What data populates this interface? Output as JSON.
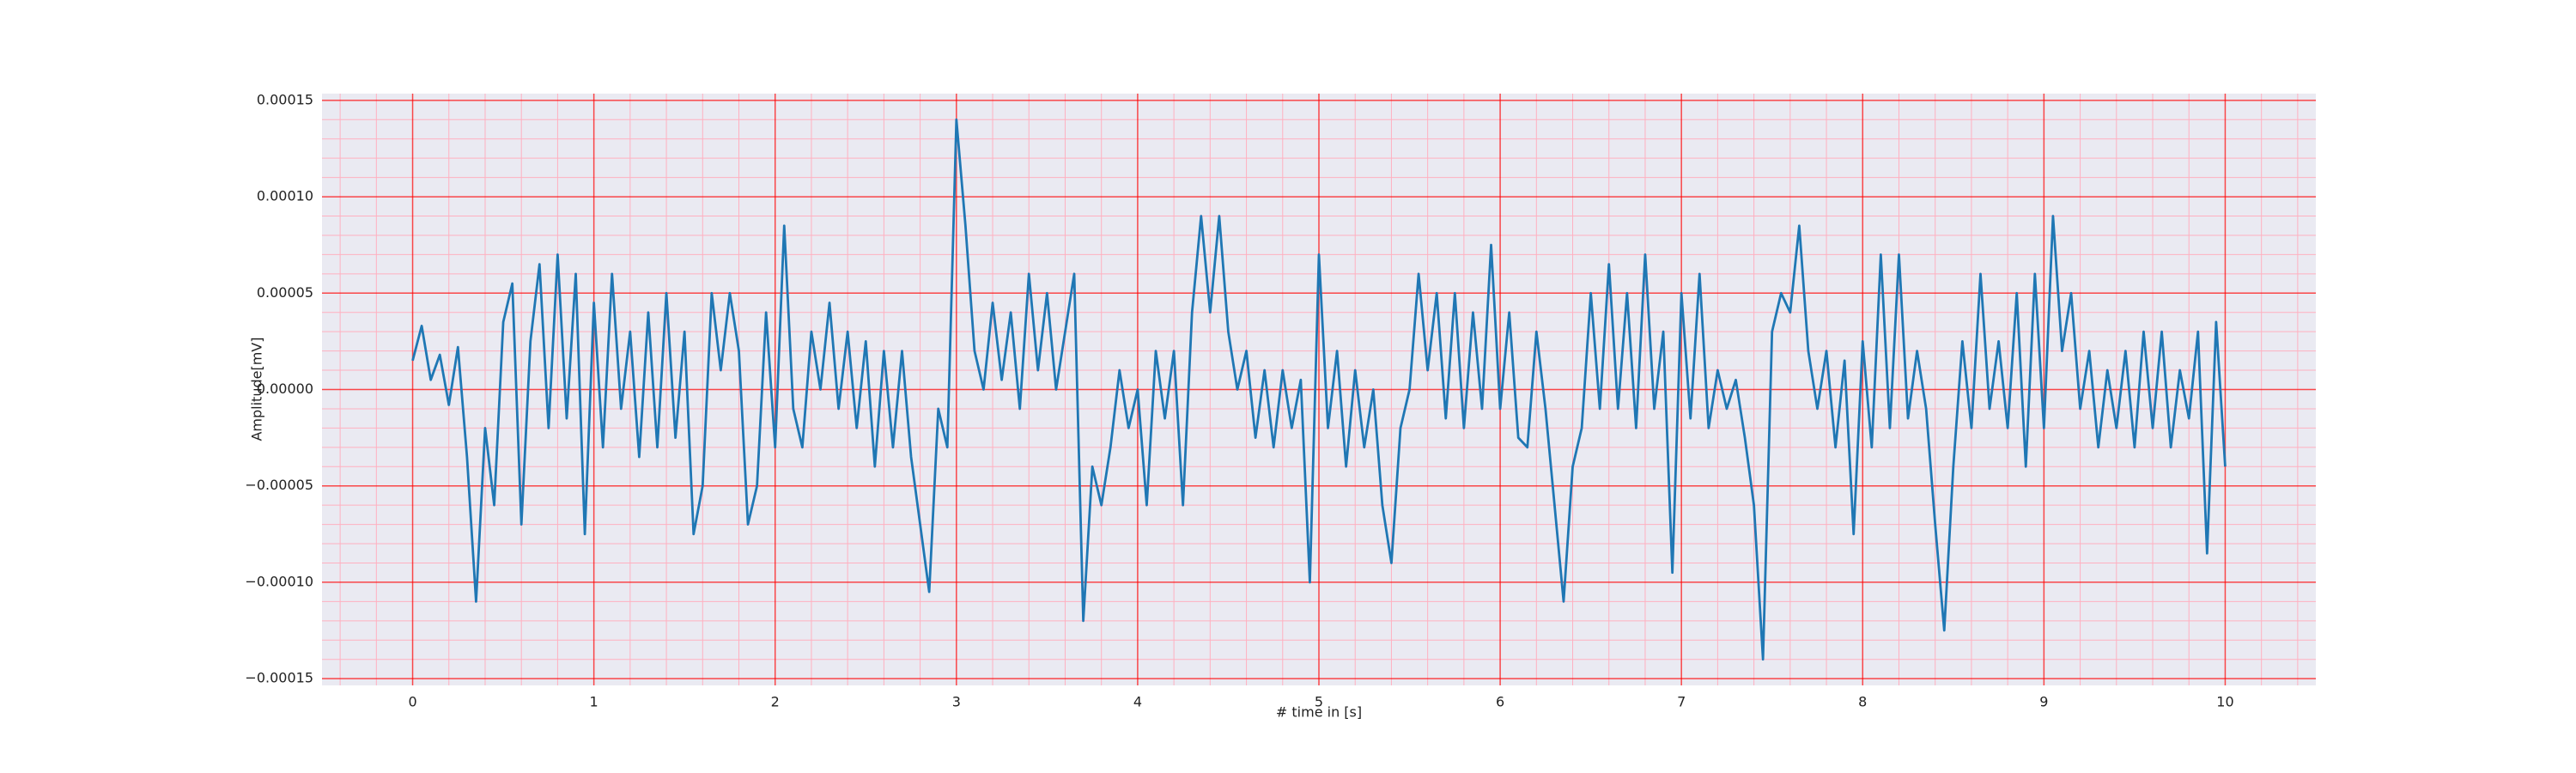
{
  "chart_data": {
    "type": "line",
    "xlabel": "# time in [s]",
    "ylabel": "Amplitude[mV]",
    "x": [
      0,
      0.05,
      0.1,
      0.15,
      0.2,
      0.25,
      0.3,
      0.35,
      0.4,
      0.45,
      0.5,
      0.55,
      0.6,
      0.65,
      0.7,
      0.75,
      0.8,
      0.85,
      0.9,
      0.95,
      1,
      1.05,
      1.1,
      1.15,
      1.2,
      1.25,
      1.3,
      1.35,
      1.4,
      1.45,
      1.5,
      1.55,
      1.6,
      1.65,
      1.7,
      1.75,
      1.8,
      1.85,
      1.9,
      1.95,
      2,
      2.05,
      2.1,
      2.15,
      2.2,
      2.25,
      2.3,
      2.35,
      2.4,
      2.45,
      2.5,
      2.55,
      2.6,
      2.65,
      2.7,
      2.75,
      2.8,
      2.85,
      2.9,
      2.95,
      3,
      3.05,
      3.1,
      3.15,
      3.2,
      3.25,
      3.3,
      3.35,
      3.4,
      3.45,
      3.5,
      3.55,
      3.6,
      3.65,
      3.7,
      3.75,
      3.8,
      3.85,
      3.9,
      3.95,
      4,
      4.05,
      4.1,
      4.15,
      4.2,
      4.25,
      4.3,
      4.35,
      4.4,
      4.45,
      4.5,
      4.55,
      4.6,
      4.65,
      4.7,
      4.75,
      4.8,
      4.85,
      4.9,
      4.95,
      5,
      5.05,
      5.1,
      5.15,
      5.2,
      5.25,
      5.3,
      5.35,
      5.4,
      5.45,
      5.5,
      5.55,
      5.6,
      5.65,
      5.7,
      5.75,
      5.8,
      5.85,
      5.9,
      5.95,
      6,
      6.05,
      6.1,
      6.15,
      6.2,
      6.25,
      6.3,
      6.35,
      6.4,
      6.45,
      6.5,
      6.55,
      6.6,
      6.65,
      6.7,
      6.75,
      6.8,
      6.85,
      6.9,
      6.95,
      7,
      7.05,
      7.1,
      7.15,
      7.2,
      7.25,
      7.3,
      7.35,
      7.4,
      7.45,
      7.5,
      7.55,
      7.6,
      7.65,
      7.7,
      7.75,
      7.8,
      7.85,
      7.9,
      7.95,
      8,
      8.05,
      8.1,
      8.15,
      8.2,
      8.25,
      8.3,
      8.35,
      8.4,
      8.45,
      8.5,
      8.55,
      8.6,
      8.65,
      8.7,
      8.75,
      8.8,
      8.85,
      8.9,
      8.95,
      9,
      9.05,
      9.1,
      9.15,
      9.2,
      9.25,
      9.3,
      9.35,
      9.4,
      9.45,
      9.5,
      9.55,
      9.6,
      9.65,
      9.7,
      9.75,
      9.8,
      9.85,
      9.9,
      9.95,
      10
    ],
    "series": [
      {
        "color": "#1f77b4",
        "values": [
          1.5e-05,
          3.3e-05,
          5e-06,
          1.8e-05,
          -8e-06,
          2.2e-05,
          -3.5e-05,
          -0.00011,
          -2e-05,
          -6e-05,
          3.5e-05,
          5.5e-05,
          -7e-05,
          2.5e-05,
          6.5e-05,
          -2e-05,
          7e-05,
          -1.5e-05,
          6e-05,
          -7.5e-05,
          4.5e-05,
          -3e-05,
          6e-05,
          -1e-05,
          3e-05,
          -3.5e-05,
          4e-05,
          -3e-05,
          5e-05,
          -2.5e-05,
          3e-05,
          -7.5e-05,
          -5e-05,
          5e-05,
          1e-05,
          5e-05,
          2e-05,
          -7e-05,
          -5e-05,
          4e-05,
          -3e-05,
          8.5e-05,
          -1e-05,
          -3e-05,
          3e-05,
          0,
          4.5e-05,
          -1e-05,
          3e-05,
          -2e-05,
          2.5e-05,
          -4e-05,
          2e-05,
          -3e-05,
          2e-05,
          -3.5e-05,
          -7e-05,
          -0.000105,
          -1e-05,
          -3e-05,
          0.00014,
          8.5e-05,
          2e-05,
          0,
          4.5e-05,
          5e-06,
          4e-05,
          -1e-05,
          6e-05,
          1e-05,
          5e-05,
          0,
          3e-05,
          6e-05,
          -0.00012,
          -4e-05,
          -6e-05,
          -3e-05,
          1e-05,
          -2e-05,
          0,
          -6e-05,
          2e-05,
          -1.5e-05,
          2e-05,
          -6e-05,
          4e-05,
          9e-05,
          4e-05,
          9e-05,
          3e-05,
          0,
          2e-05,
          -2.5e-05,
          1e-05,
          -3e-05,
          1e-05,
          -2e-05,
          5e-06,
          -0.0001,
          7e-05,
          -2e-05,
          2e-05,
          -4e-05,
          1e-05,
          -3e-05,
          0,
          -6e-05,
          -9e-05,
          -2e-05,
          0,
          6e-05,
          1e-05,
          5e-05,
          -1.5e-05,
          5e-05,
          -2e-05,
          4e-05,
          -1e-05,
          7.5e-05,
          -1e-05,
          4e-05,
          -2.5e-05,
          -3e-05,
          3e-05,
          -1e-05,
          -6e-05,
          -0.00011,
          -4e-05,
          -2e-05,
          5e-05,
          -1e-05,
          6.5e-05,
          -1e-05,
          5e-05,
          -2e-05,
          7e-05,
          -1e-05,
          3e-05,
          -9.5e-05,
          5e-05,
          -1.5e-05,
          6e-05,
          -2e-05,
          1e-05,
          -1e-05,
          5e-06,
          -2.5e-05,
          -6e-05,
          -0.00014,
          3e-05,
          5e-05,
          4e-05,
          8.5e-05,
          2e-05,
          -1e-05,
          2e-05,
          -3e-05,
          1.5e-05,
          -7.5e-05,
          2.5e-05,
          -3e-05,
          7e-05,
          -2e-05,
          7e-05,
          -1.5e-05,
          2e-05,
          -1e-05,
          -7e-05,
          -0.000125,
          -4e-05,
          2.5e-05,
          -2e-05,
          6e-05,
          -1e-05,
          2.5e-05,
          -2e-05,
          5e-05,
          -4e-05,
          6e-05,
          -2e-05,
          9e-05,
          2e-05,
          5e-05,
          -1e-05,
          2e-05,
          -3e-05,
          1e-05,
          -2e-05,
          2e-05,
          -3e-05,
          3e-05,
          -2e-05,
          3e-05,
          -3e-05,
          1e-05,
          -1.5e-05,
          3e-05,
          -8.5e-05,
          3.5e-05,
          -4e-05
        ]
      }
    ],
    "xlim": [
      -0.5,
      10.5
    ],
    "ylim": [
      -0.0001535,
      0.0001535
    ],
    "xticks": [
      0,
      1,
      2,
      3,
      4,
      5,
      6,
      7,
      8,
      9,
      10
    ],
    "yticks": [
      {
        "value": -0.00015,
        "label": "−0.00015"
      },
      {
        "value": -0.0001,
        "label": "−0.00010"
      },
      {
        "value": -5e-05,
        "label": "−0.00005"
      },
      {
        "value": 0,
        "label": "0.00000"
      },
      {
        "value": 5e-05,
        "label": "0.00005"
      },
      {
        "value": 0.0001,
        "label": "0.00010"
      },
      {
        "value": 0.00015,
        "label": "0.00015"
      }
    ],
    "xminorticks": [
      -0.4,
      -0.2,
      0.2,
      0.4,
      0.6,
      0.8,
      1.2,
      1.4,
      1.6,
      1.8,
      2.2,
      2.4,
      2.6,
      2.8,
      3.2,
      3.4,
      3.6,
      3.8,
      4.2,
      4.4,
      4.6,
      4.8,
      5.2,
      5.4,
      5.6,
      5.8,
      6.2,
      6.4,
      6.6,
      6.8,
      7.2,
      7.4,
      7.6,
      7.8,
      8.2,
      8.4,
      8.6,
      8.8,
      9.2,
      9.4,
      9.6,
      9.8,
      10.2,
      10.4
    ],
    "yminorticks": [
      -0.00014,
      -0.00013,
      -0.00012,
      -0.00011,
      -9e-05,
      -8e-05,
      -7e-05,
      -6e-05,
      -4e-05,
      -3e-05,
      -2e-05,
      -1e-05,
      1e-05,
      2e-05,
      3e-05,
      4e-05,
      6e-05,
      7e-05,
      8e-05,
      9e-05,
      0.00011,
      0.00012,
      0.00013,
      0.00014
    ],
    "grid": true,
    "minor_grid": true,
    "grid_color": "#ff0000",
    "minor_grid_color": "#ffb0c0",
    "background": "#eaeaf2"
  }
}
